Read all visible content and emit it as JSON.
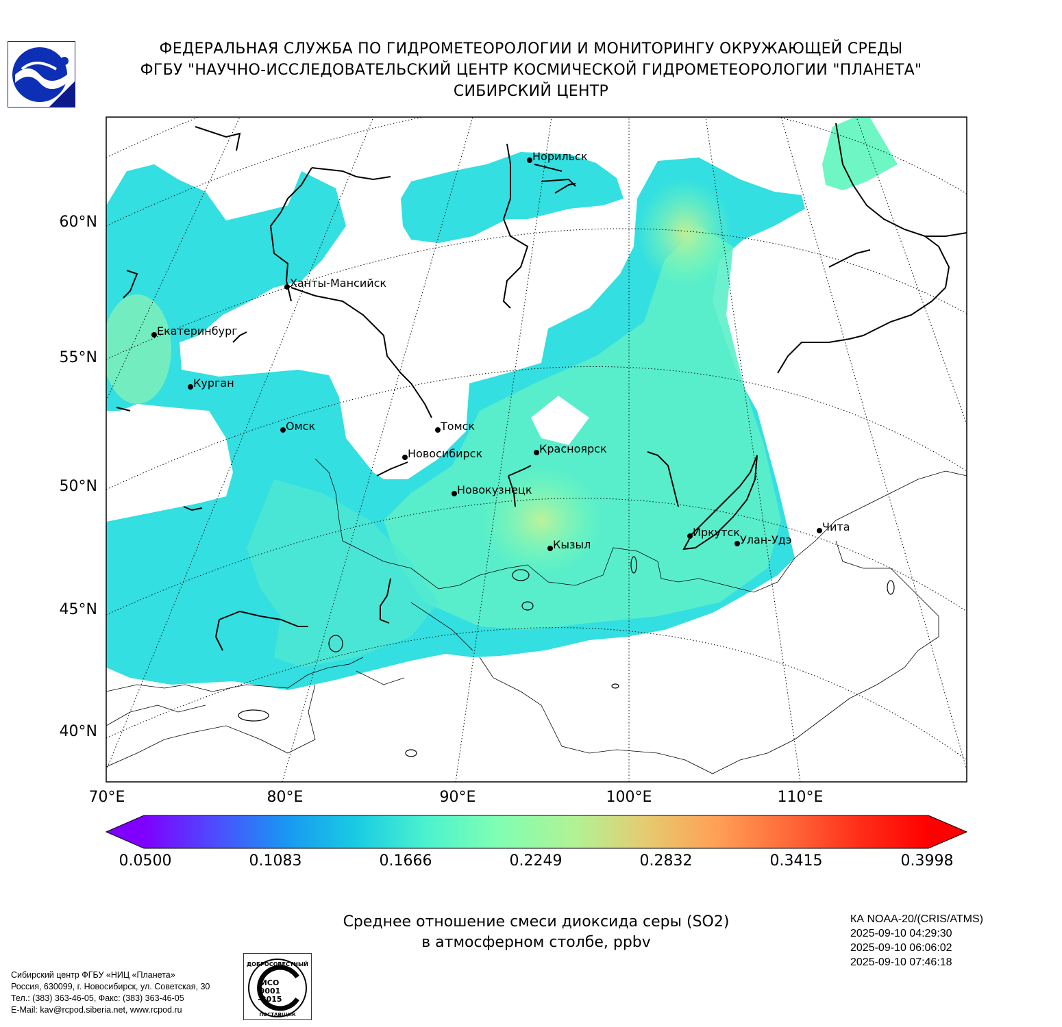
{
  "header": {
    "line1": "ФЕДЕРАЛЬНАЯ СЛУЖБА ПО ГИДРОМЕТЕОРОЛОГИИ И МОНИТОРИНГУ ОКРУЖАЮЩЕЙ СРЕДЫ",
    "line2": "ФГБУ \"НАУЧНО-ИССЛЕДОВАТЕЛЬСКИЙ ЦЕНТР КОСМИЧЕСКОЙ ГИДРОМЕТЕОРОЛОГИИ \"ПЛАНЕТА\"",
    "line3": "СИБИРСКИЙ ЦЕНТР"
  },
  "map": {
    "lat_labels": [
      "60°N",
      "55°N",
      "50°N",
      "45°N",
      "40°N"
    ],
    "lon_labels": [
      "70°E",
      "80°E",
      "90°E",
      "100°E",
      "110°E"
    ],
    "cities": [
      "Норильск",
      "Ханты-Мансийск",
      "Екатеринбург",
      "Курган",
      "Омск",
      "Томск",
      "Новосибирск",
      "Красноярск",
      "Новокузнецк",
      "Кызыл",
      "Иркутск",
      "Улан-Удэ",
      "Чита"
    ]
  },
  "colorbar": {
    "ticks": [
      "0.0500",
      "0.1083",
      "0.1666",
      "0.2249",
      "0.2832",
      "0.3415",
      "0.3998"
    ],
    "colors": [
      "#7f00ff",
      "#4c4cfe",
      "#1996f3",
      "#19cbe3",
      "#4cf2ce",
      "#7ffeb3",
      "#b2f295",
      "#e5cb71",
      "#ffa055",
      "#ff6a3a",
      "#ff2f19",
      "#ff0000"
    ]
  },
  "caption": {
    "line1": "Среднее отношение смеси диоксида серы (SO2)",
    "line2": "в атмосферном столбе, ppbv"
  },
  "satellite": {
    "name": "КА NOAA-20/(CRIS/ATMS)",
    "times": [
      "2025-09-10 04:29:30",
      "2025-09-10 06:06:02",
      "2025-09-10 07:46:18"
    ]
  },
  "contact": {
    "line1": "Сибирский центр ФГБУ «НИЦ «Планета»",
    "line2": "Россия, 630099, г. Новосибирск, ул. Советская, 30",
    "line3": "Тел.: (383) 363-46-05, Факс: (383) 363-46-05",
    "line4": "E-Mail: kav@rcpod.siberia.net, www.rcpod.ru"
  },
  "iso_badge": {
    "top": "ДОБРОСОВЕСТНЫЙ",
    "line1": "ИСО",
    "line2": "9001",
    "line3": "-2015",
    "bottom": "ПОСТАВЩИК"
  }
}
